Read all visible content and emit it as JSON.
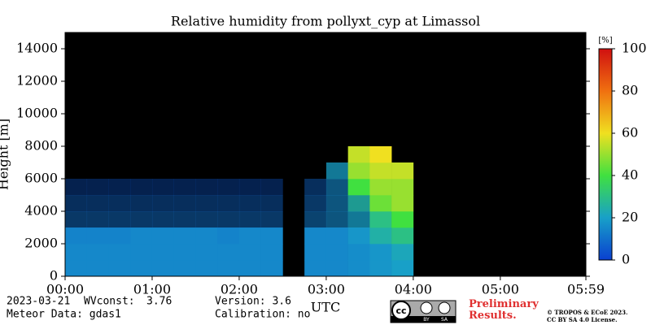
{
  "chart_data": {
    "type": "heatmap",
    "title": "Relative humidity from pollyxt_cyp at Limassol",
    "xlabel": "UTC",
    "ylabel": "Height [m]",
    "x_bins": [
      0,
      0.25,
      0.5,
      0.75,
      1,
      1.25,
      1.5,
      1.75,
      2,
      2.25,
      2.5,
      2.75,
      3,
      3.25,
      3.5,
      3.75,
      4
    ],
    "y_bins": [
      0,
      1000,
      2000,
      3000,
      4000,
      5000,
      6000,
      7000,
      8000
    ],
    "z": [
      [
        15,
        15,
        15,
        15,
        15,
        15,
        15,
        15,
        15,
        15,
        null,
        15,
        15,
        16,
        18,
        20
      ],
      [
        15,
        15,
        15,
        15,
        15,
        15,
        15,
        15,
        15,
        15,
        null,
        15,
        15,
        16,
        18,
        22
      ],
      [
        14,
        14,
        14,
        15,
        15,
        15,
        15,
        14,
        15,
        15,
        null,
        15,
        15,
        18,
        25,
        30
      ],
      [
        10,
        10,
        10,
        10,
        10,
        10,
        10,
        10,
        10,
        10,
        null,
        12,
        15,
        20,
        30,
        40
      ],
      [
        8,
        8,
        8,
        8,
        8,
        8,
        8,
        8,
        8,
        8,
        null,
        10,
        15,
        25,
        45,
        50
      ],
      [
        5,
        5,
        5,
        5,
        5,
        5,
        5,
        5,
        5,
        5,
        null,
        8,
        15,
        40,
        50,
        50
      ],
      [
        null,
        null,
        null,
        null,
        null,
        null,
        null,
        null,
        null,
        null,
        null,
        null,
        20,
        50,
        55,
        55
      ],
      [
        null,
        null,
        null,
        null,
        null,
        null,
        null,
        null,
        null,
        null,
        null,
        null,
        null,
        55,
        60,
        null
      ]
    ],
    "xlim": [
      0,
      5.9833
    ],
    "ylim": [
      0,
      15000
    ],
    "xticks": [
      {
        "value": 0,
        "label": "00:00"
      },
      {
        "value": 1,
        "label": "01:00"
      },
      {
        "value": 2,
        "label": "02:00"
      },
      {
        "value": 3,
        "label": "03:00"
      },
      {
        "value": 4,
        "label": "04:00"
      },
      {
        "value": 5,
        "label": "05:00"
      },
      {
        "value": 5.9833,
        "label": "05:59"
      }
    ],
    "yticks": [
      0,
      2000,
      4000,
      6000,
      8000,
      10000,
      12000,
      14000
    ],
    "colorbar": {
      "label": "[%]",
      "clim": [
        0,
        100
      ],
      "ticks": [
        0,
        20,
        40,
        60,
        80,
        100
      ]
    }
  },
  "footer": {
    "date": "2023-03-21",
    "wv_label": "WVconst:",
    "wv_value": "3.76",
    "meteor": "Meteor Data: gdas1",
    "version": "Version: 3.6",
    "calibration": "Calibration: no",
    "preliminary": "Preliminary Results.",
    "copyright": "© TROPOS & ECoE 2023.",
    "license": "CC BY SA 4.0 License.",
    "badge": [
      "cc",
      "BY",
      "SA"
    ]
  }
}
